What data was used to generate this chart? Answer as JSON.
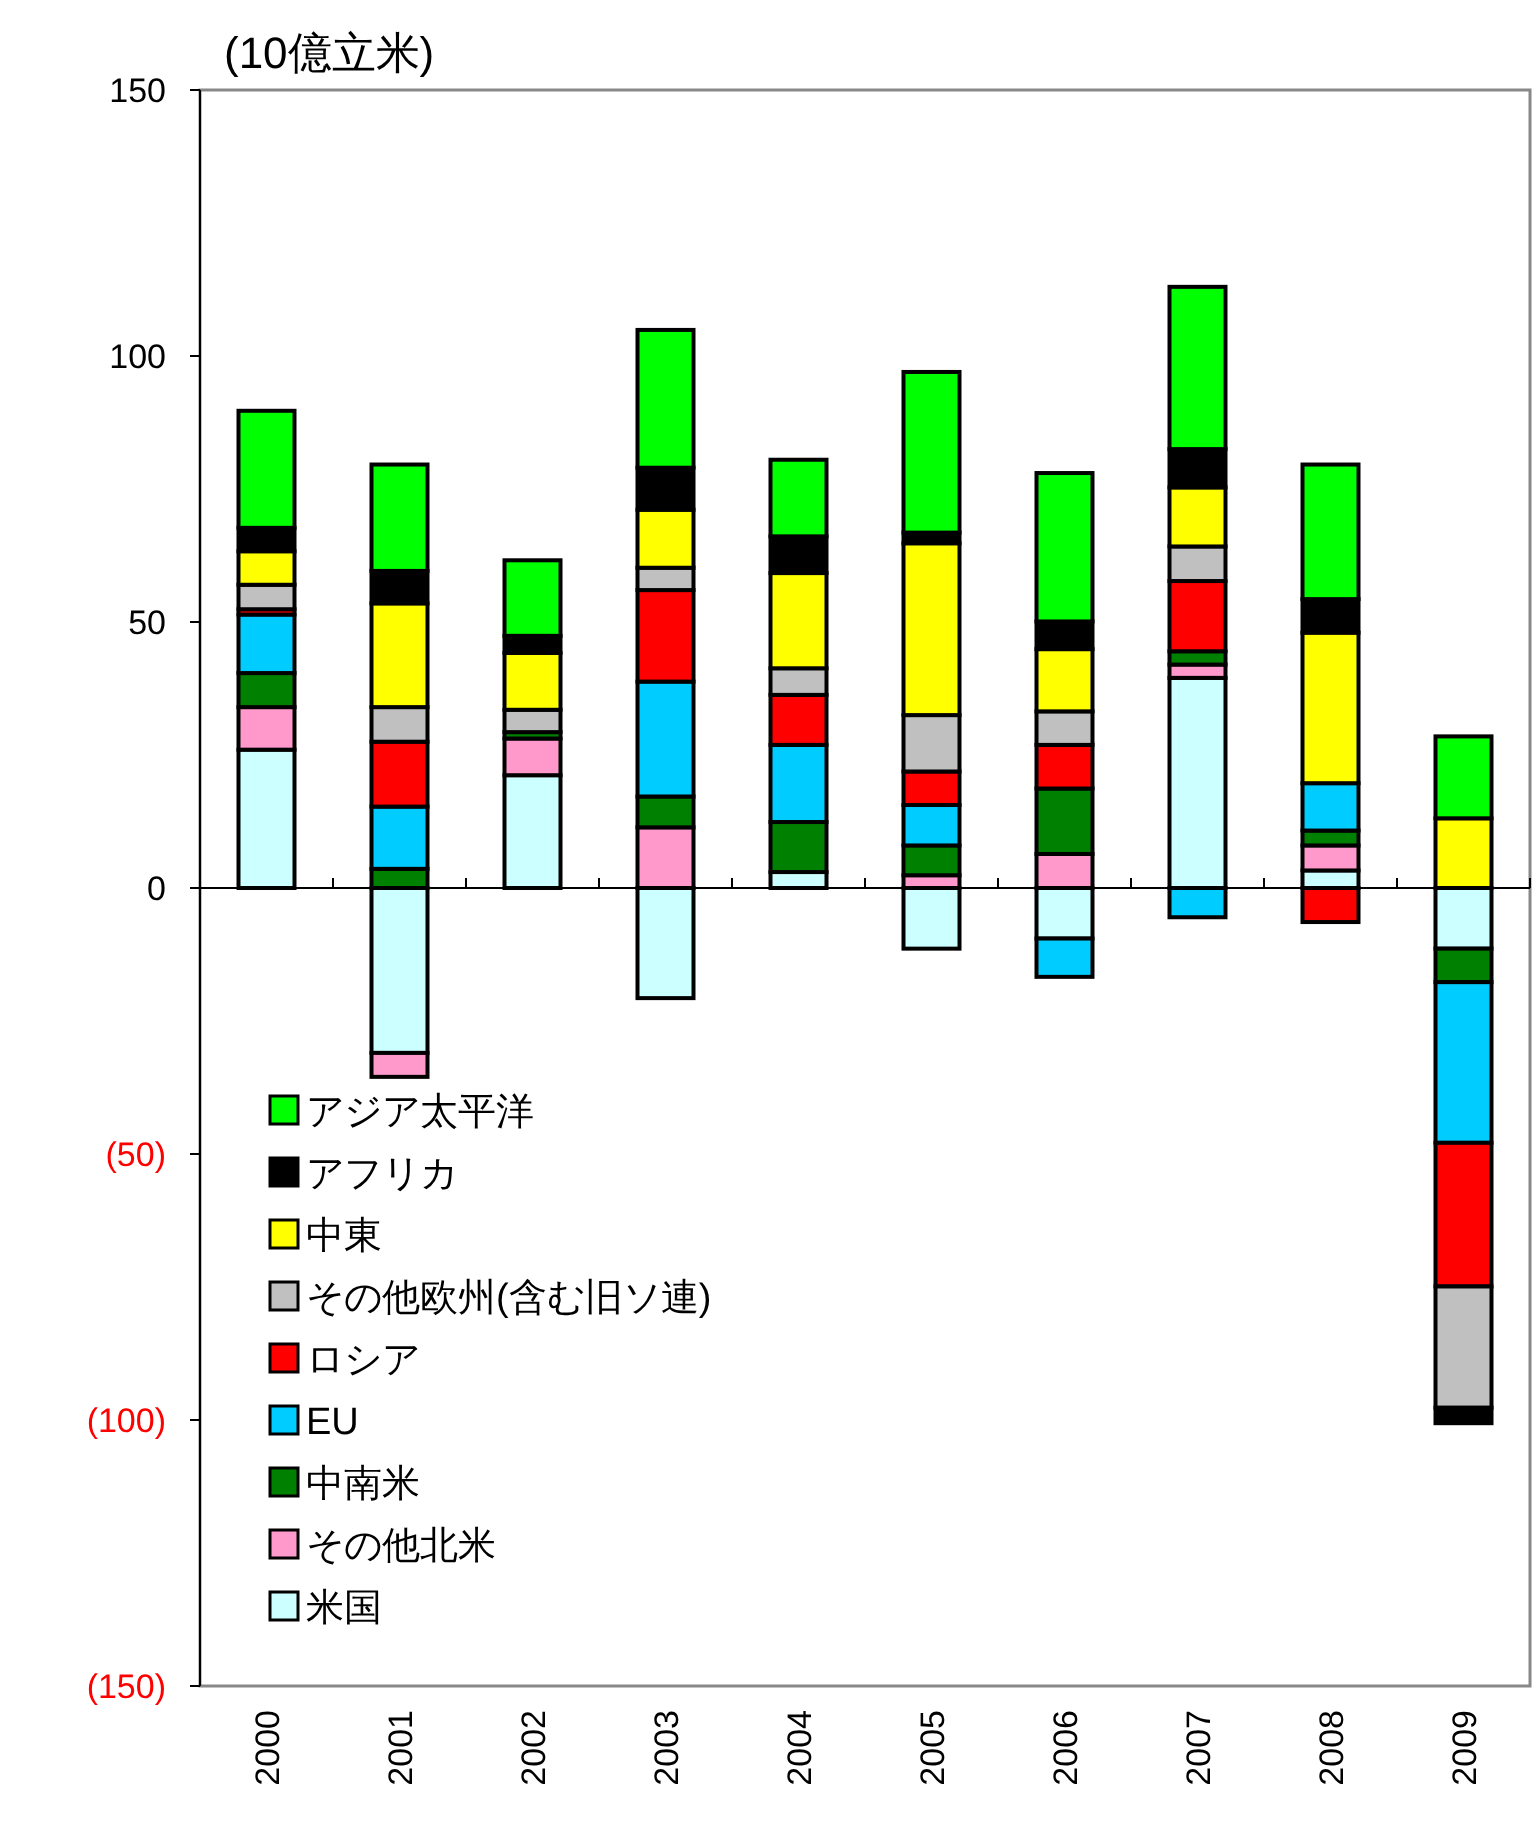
{
  "chart_data": {
    "type": "bar",
    "stacked": true,
    "ylabel": "(10億立米)",
    "categories": [
      "2000",
      "2001",
      "2002",
      "2003",
      "2004",
      "2005",
      "2006",
      "2007",
      "2008",
      "2009"
    ],
    "ylim": [
      -150,
      150
    ],
    "yticks": [
      {
        "value": -150,
        "label": "(150)"
      },
      {
        "value": -100,
        "label": "(100)"
      },
      {
        "value": -50,
        "label": "(50)"
      },
      0,
      50,
      100,
      150
    ],
    "legend": "bottom left",
    "series": [
      {
        "name": "米国",
        "color": "#ccffff",
        "values": [
          26,
          -31,
          21.2,
          -20.7,
          3,
          -11.4,
          -9.5,
          39.5,
          3.3,
          -11.4
        ]
      },
      {
        "name": "その他北米",
        "color": "#ff99cc",
        "values": [
          8,
          -4.5,
          6.9,
          11.4,
          0,
          2.4,
          6.4,
          2.5,
          4.7,
          0
        ]
      },
      {
        "name": "中南米",
        "color": "#008000",
        "values": [
          6.4,
          3.6,
          1.2,
          5.8,
          9.4,
          5.6,
          12.3,
          2.5,
          2.8,
          -6.3
        ]
      },
      {
        "name": "EU",
        "color": "#00ccff",
        "values": [
          11,
          11.7,
          0,
          21.6,
          14.5,
          7.6,
          -7.2,
          -5.5,
          8.9,
          -30.2
        ]
      },
      {
        "name": "ロシア",
        "color": "#ff0000",
        "values": [
          1,
          12.2,
          null,
          17.2,
          9.4,
          6.3,
          8.2,
          13.2,
          -6.4,
          -27
        ]
      },
      {
        "name": "その他欧州(含む旧ソ連)",
        "color": "#c0c0c0",
        "values": [
          4.6,
          6.5,
          4.2,
          4.2,
          5,
          10.6,
          6.3,
          6.5,
          0,
          -22.8
        ]
      },
      {
        "name": "中東",
        "color": "#ffff00",
        "values": [
          6.3,
          19.5,
          10.7,
          10.9,
          17.9,
          32.3,
          11.7,
          11.1,
          28.3,
          13.1
        ]
      },
      {
        "name": "アフリカ",
        "color": "#000000",
        "values": [
          4.4,
          6.1,
          3.2,
          7.9,
          6.9,
          2,
          5.2,
          7.2,
          6.3,
          -2.9
        ]
      },
      {
        "name": "アジア太平洋",
        "color": "#00ff00",
        "values": [
          22,
          20,
          14.2,
          25.9,
          14.4,
          30.2,
          27.9,
          30.5,
          25.3,
          15.4
        ]
      }
    ]
  }
}
